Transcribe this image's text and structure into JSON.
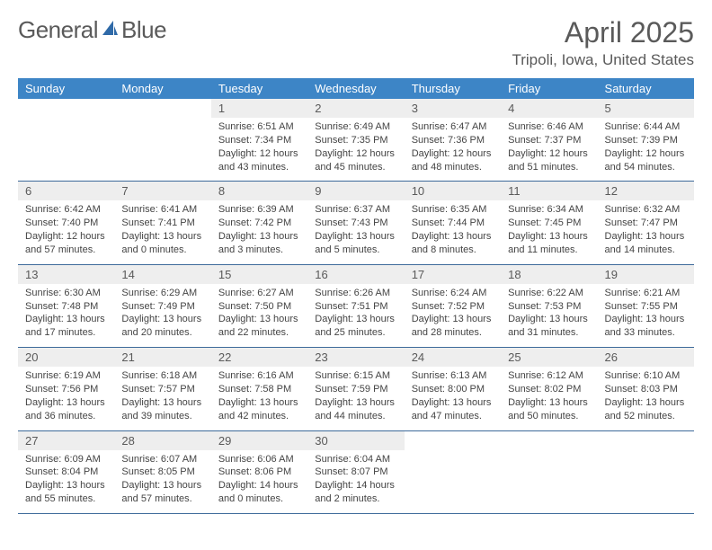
{
  "logo": {
    "text1": "General",
    "text2": "Blue"
  },
  "title": "April 2025",
  "location": "Tripoli, Iowa, United States",
  "colors": {
    "header_bg": "#3d85c6",
    "header_fg": "#ffffff",
    "daynum_bg": "#eeeeee",
    "row_border": "#3d6a9a",
    "text": "#5a5a5a",
    "logo_accent": "#2f6aa8"
  },
  "weekdays": [
    "Sunday",
    "Monday",
    "Tuesday",
    "Wednesday",
    "Thursday",
    "Friday",
    "Saturday"
  ],
  "weeks": [
    [
      null,
      null,
      {
        "n": "1",
        "sr": "6:51 AM",
        "ss": "7:34 PM",
        "dl": "12 hours and 43 minutes."
      },
      {
        "n": "2",
        "sr": "6:49 AM",
        "ss": "7:35 PM",
        "dl": "12 hours and 45 minutes."
      },
      {
        "n": "3",
        "sr": "6:47 AM",
        "ss": "7:36 PM",
        "dl": "12 hours and 48 minutes."
      },
      {
        "n": "4",
        "sr": "6:46 AM",
        "ss": "7:37 PM",
        "dl": "12 hours and 51 minutes."
      },
      {
        "n": "5",
        "sr": "6:44 AM",
        "ss": "7:39 PM",
        "dl": "12 hours and 54 minutes."
      }
    ],
    [
      {
        "n": "6",
        "sr": "6:42 AM",
        "ss": "7:40 PM",
        "dl": "12 hours and 57 minutes."
      },
      {
        "n": "7",
        "sr": "6:41 AM",
        "ss": "7:41 PM",
        "dl": "13 hours and 0 minutes."
      },
      {
        "n": "8",
        "sr": "6:39 AM",
        "ss": "7:42 PM",
        "dl": "13 hours and 3 minutes."
      },
      {
        "n": "9",
        "sr": "6:37 AM",
        "ss": "7:43 PM",
        "dl": "13 hours and 5 minutes."
      },
      {
        "n": "10",
        "sr": "6:35 AM",
        "ss": "7:44 PM",
        "dl": "13 hours and 8 minutes."
      },
      {
        "n": "11",
        "sr": "6:34 AM",
        "ss": "7:45 PM",
        "dl": "13 hours and 11 minutes."
      },
      {
        "n": "12",
        "sr": "6:32 AM",
        "ss": "7:47 PM",
        "dl": "13 hours and 14 minutes."
      }
    ],
    [
      {
        "n": "13",
        "sr": "6:30 AM",
        "ss": "7:48 PM",
        "dl": "13 hours and 17 minutes."
      },
      {
        "n": "14",
        "sr": "6:29 AM",
        "ss": "7:49 PM",
        "dl": "13 hours and 20 minutes."
      },
      {
        "n": "15",
        "sr": "6:27 AM",
        "ss": "7:50 PM",
        "dl": "13 hours and 22 minutes."
      },
      {
        "n": "16",
        "sr": "6:26 AM",
        "ss": "7:51 PM",
        "dl": "13 hours and 25 minutes."
      },
      {
        "n": "17",
        "sr": "6:24 AM",
        "ss": "7:52 PM",
        "dl": "13 hours and 28 minutes."
      },
      {
        "n": "18",
        "sr": "6:22 AM",
        "ss": "7:53 PM",
        "dl": "13 hours and 31 minutes."
      },
      {
        "n": "19",
        "sr": "6:21 AM",
        "ss": "7:55 PM",
        "dl": "13 hours and 33 minutes."
      }
    ],
    [
      {
        "n": "20",
        "sr": "6:19 AM",
        "ss": "7:56 PM",
        "dl": "13 hours and 36 minutes."
      },
      {
        "n": "21",
        "sr": "6:18 AM",
        "ss": "7:57 PM",
        "dl": "13 hours and 39 minutes."
      },
      {
        "n": "22",
        "sr": "6:16 AM",
        "ss": "7:58 PM",
        "dl": "13 hours and 42 minutes."
      },
      {
        "n": "23",
        "sr": "6:15 AM",
        "ss": "7:59 PM",
        "dl": "13 hours and 44 minutes."
      },
      {
        "n": "24",
        "sr": "6:13 AM",
        "ss": "8:00 PM",
        "dl": "13 hours and 47 minutes."
      },
      {
        "n": "25",
        "sr": "6:12 AM",
        "ss": "8:02 PM",
        "dl": "13 hours and 50 minutes."
      },
      {
        "n": "26",
        "sr": "6:10 AM",
        "ss": "8:03 PM",
        "dl": "13 hours and 52 minutes."
      }
    ],
    [
      {
        "n": "27",
        "sr": "6:09 AM",
        "ss": "8:04 PM",
        "dl": "13 hours and 55 minutes."
      },
      {
        "n": "28",
        "sr": "6:07 AM",
        "ss": "8:05 PM",
        "dl": "13 hours and 57 minutes."
      },
      {
        "n": "29",
        "sr": "6:06 AM",
        "ss": "8:06 PM",
        "dl": "14 hours and 0 minutes."
      },
      {
        "n": "30",
        "sr": "6:04 AM",
        "ss": "8:07 PM",
        "dl": "14 hours and 2 minutes."
      },
      null,
      null,
      null
    ]
  ],
  "labels": {
    "sunrise": "Sunrise:",
    "sunset": "Sunset:",
    "daylight": "Daylight:"
  }
}
